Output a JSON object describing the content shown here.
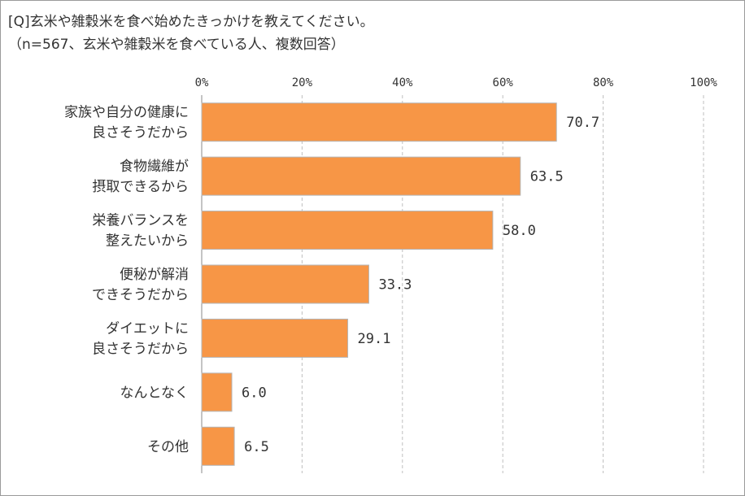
{
  "header": {
    "question": "[Q]玄米や雑穀米を食べ始めたきっかけを教えてください。",
    "sample": "（n=567、玄米や雑穀米を食べている人、複数回答）"
  },
  "colors": {
    "bar_fill": "#f79646",
    "bar_stroke": "#b5b5b5",
    "grid": "#bfbfbf",
    "axis": "#888888",
    "text": "#333333"
  },
  "chart_data": {
    "type": "bar",
    "orientation": "horizontal",
    "title": "[Q]玄米や雑穀米を食べ始めたきっかけを教えてください。",
    "subtitle": "（n=567、玄米や雑穀米を食べている人、複数回答）",
    "categories": [
      [
        "家族や自分の健康に",
        "良さそうだから"
      ],
      [
        "食物繊維が",
        "摂取できるから"
      ],
      [
        "栄養バランスを",
        "整えたいから"
      ],
      [
        "便秘が解消",
        "できそうだから"
      ],
      [
        "ダイエットに",
        "良さそうだから"
      ],
      [
        "なんとなく"
      ],
      [
        "その他"
      ]
    ],
    "values": [
      70.7,
      63.5,
      58.0,
      33.3,
      29.1,
      6.0,
      6.5
    ],
    "value_labels": [
      "70.7",
      "63.5",
      "58.0",
      "33.3",
      "29.1",
      "6.0",
      "6.5"
    ],
    "xlim": [
      0,
      100
    ],
    "xticks": [
      0,
      20,
      40,
      60,
      80,
      100
    ],
    "xtick_labels": [
      "0%",
      "20%",
      "40%",
      "60%",
      "80%",
      "100%"
    ],
    "xaxis_position": "top",
    "grid": true,
    "legend": "none"
  }
}
